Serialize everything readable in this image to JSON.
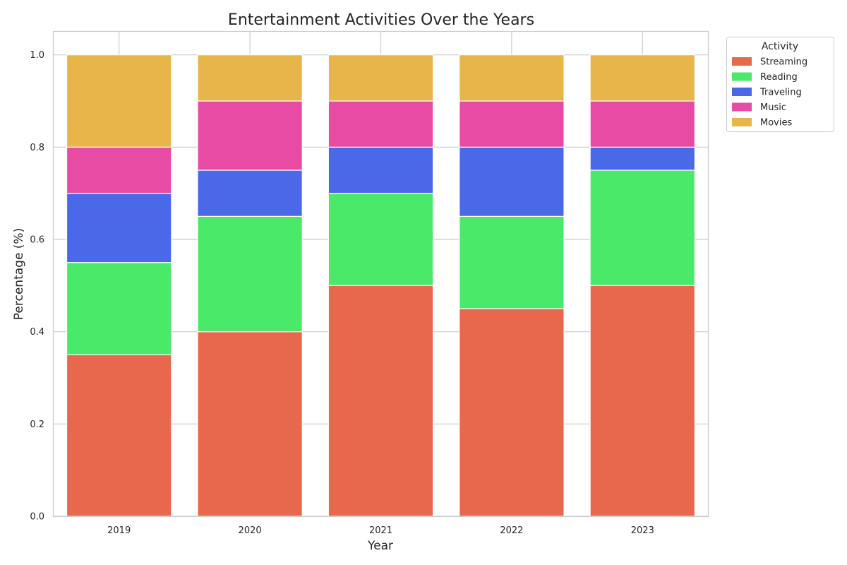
{
  "chart_data": {
    "type": "bar",
    "stacked": true,
    "title": "Entertainment Activities Over the Years",
    "xlabel": "Year",
    "ylabel": "Percentage (%)",
    "categories": [
      "2019",
      "2020",
      "2021",
      "2022",
      "2023"
    ],
    "ylim": [
      0,
      1.05
    ],
    "yticks": [
      "0.0",
      "0.2",
      "0.4",
      "0.6",
      "0.8",
      "1.0"
    ],
    "ytick_values": [
      0,
      0.2,
      0.4,
      0.6,
      0.8,
      1.0
    ],
    "grid": true,
    "legend": {
      "title": "Activity",
      "placement": "outside-top-right"
    },
    "series": [
      {
        "name": "Streaming",
        "color": "#e8684d",
        "values": [
          0.35,
          0.4,
          0.5,
          0.45,
          0.5
        ]
      },
      {
        "name": "Reading",
        "color": "#4be96a",
        "values": [
          0.2,
          0.25,
          0.2,
          0.2,
          0.25
        ]
      },
      {
        "name": "Traveling",
        "color": "#4a68e8",
        "values": [
          0.15,
          0.1,
          0.1,
          0.15,
          0.05
        ]
      },
      {
        "name": "Music",
        "color": "#e84ba3",
        "values": [
          0.1,
          0.15,
          0.1,
          0.1,
          0.1
        ]
      },
      {
        "name": "Movies",
        "color": "#e8b54b",
        "values": [
          0.2,
          0.1,
          0.1,
          0.1,
          0.1
        ]
      }
    ]
  }
}
